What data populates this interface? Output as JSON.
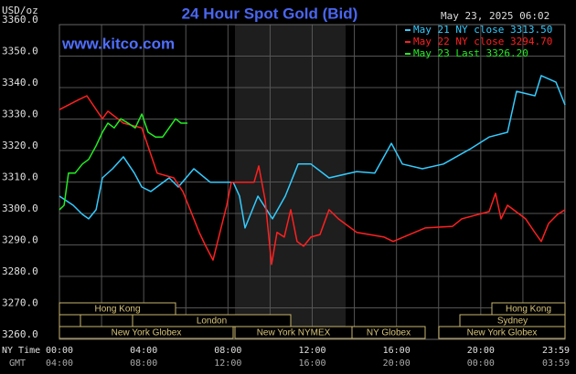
{
  "chart_data": {
    "type": "line",
    "title": "24 Hour Spot Gold (Bid)",
    "ylabel": "USD/oz",
    "watermark": "www.kitco.com",
    "timestamp": "May 23, 2025 06:02",
    "x_axis_name": "NY Time",
    "x2_axis_name": "GMT",
    "xlim": [
      0,
      24
    ],
    "xticks": [
      {
        "value": 0,
        "label": "00:00"
      },
      {
        "value": 4,
        "label": "04:00"
      },
      {
        "value": 8,
        "label": "08:00"
      },
      {
        "value": 12,
        "label": "12:00"
      },
      {
        "value": 16,
        "label": "16:00"
      },
      {
        "value": 20,
        "label": "20:00"
      },
      {
        "value": 23.98,
        "label": "23:59"
      }
    ],
    "x2tick_labels": [
      "04:00",
      "08:00",
      "12:00",
      "16:00",
      "20:00",
      "00:00",
      "03:59"
    ],
    "xminorticks": [
      2,
      6,
      10,
      14,
      18,
      22
    ],
    "ylim": [
      3260,
      3360
    ],
    "yticks": [
      {
        "value": 3260,
        "label": "3260.0"
      },
      {
        "value": 3270,
        "label": "3270.0"
      },
      {
        "value": 3280,
        "label": "3280.0"
      },
      {
        "value": 3290,
        "label": "3290.0"
      },
      {
        "value": 3300,
        "label": "3300.0"
      },
      {
        "value": 3310,
        "label": "3310.0"
      },
      {
        "value": 3320,
        "label": "3320.0"
      },
      {
        "value": 3330,
        "label": "3330.0"
      },
      {
        "value": 3340,
        "label": "3340.0"
      },
      {
        "value": 3350,
        "label": "3350.0"
      },
      {
        "value": 3360,
        "label": "3360.0"
      }
    ],
    "grid": true,
    "sessions": [
      "Hong Kong",
      "Hong Kong",
      "London",
      "Sydney",
      "New York Globex",
      "New York NYMEX",
      "NY Globex",
      "New York Globex"
    ],
    "series": [
      {
        "name": "May 21 NY close 3313.50",
        "color": "#33ccff",
        "x": [
          0,
          0.65,
          1.09,
          1.39,
          1.74,
          2.04,
          2.52,
          3.04,
          3.56,
          3.91,
          4.34,
          5.21,
          5.64,
          6.38,
          7.16,
          8.25,
          8.55,
          8.81,
          9.42,
          10.11,
          10.72,
          11.33,
          11.94,
          12.8,
          14.11,
          14.97,
          15.76,
          16.28,
          17.23,
          18.23,
          19.53,
          20.4,
          21.27,
          21.7,
          22.57,
          22.87,
          23.57,
          24
        ],
        "values": [
          3305.5,
          3302.6,
          3299.7,
          3298.3,
          3301.2,
          3311.3,
          3314.2,
          3318,
          3312.8,
          3308.4,
          3307,
          3311.3,
          3308.4,
          3314.2,
          3309.9,
          3309.9,
          3305.5,
          3295.4,
          3305.5,
          3298.3,
          3305.5,
          3315.7,
          3315.7,
          3311.3,
          3313.3,
          3312.8,
          3322.3,
          3315.7,
          3314.2,
          3315.7,
          3320.6,
          3324.3,
          3325.8,
          3338.8,
          3337.4,
          3343.8,
          3341.7,
          3334.5
        ]
      },
      {
        "name": "May 22 NY close 3294.70",
        "color": "#ff2020",
        "x": [
          0,
          0.87,
          1.3,
          2.04,
          2.3,
          3.04,
          3.91,
          4.64,
          5.43,
          5.86,
          6.64,
          6.95,
          7.29,
          7.94,
          8.16,
          9.24,
          9.46,
          9.77,
          10.07,
          10.33,
          10.67,
          10.98,
          11.28,
          11.59,
          11.94,
          12.37,
          12.8,
          13.24,
          14.11,
          15.41,
          15.84,
          17.36,
          18.66,
          19.1,
          20.4,
          20.7,
          20.96,
          21.27,
          22.13,
          22.57,
          22.87,
          23.22,
          23.65,
          24
        ],
        "values": [
          3333,
          3336,
          3337.4,
          3330.1,
          3332.5,
          3328.7,
          3327.2,
          3312.8,
          3311.3,
          3307,
          3293.9,
          3289.6,
          3285.2,
          3302.6,
          3309.9,
          3309.9,
          3315.1,
          3304.1,
          3283.8,
          3294,
          3292.5,
          3301.2,
          3291.1,
          3289.6,
          3292.5,
          3293.3,
          3301.2,
          3298.3,
          3294,
          3292.5,
          3291.1,
          3295.4,
          3295.9,
          3298.3,
          3300.6,
          3306.4,
          3298.3,
          3302.6,
          3298.3,
          3293.9,
          3291.1,
          3296.8,
          3299.7,
          3301.2
        ]
      },
      {
        "name": "May 23 Last 3326.20",
        "color": "#22ee22",
        "x": [
          0,
          0.22,
          0.43,
          0.74,
          1.09,
          1.39,
          1.74,
          2.04,
          2.3,
          2.6,
          2.91,
          3.26,
          3.6,
          3.91,
          4.21,
          4.56,
          4.9,
          5.21,
          5.51,
          5.77,
          6.08
        ],
        "values": [
          3301.2,
          3302.6,
          3312.8,
          3312.8,
          3315.7,
          3317.2,
          3321.5,
          3325.8,
          3328.7,
          3327.2,
          3330.1,
          3328.7,
          3327.2,
          3331.6,
          3325.8,
          3324.3,
          3324.3,
          3327.2,
          3330.1,
          3328.7,
          3328.7
        ]
      }
    ]
  }
}
